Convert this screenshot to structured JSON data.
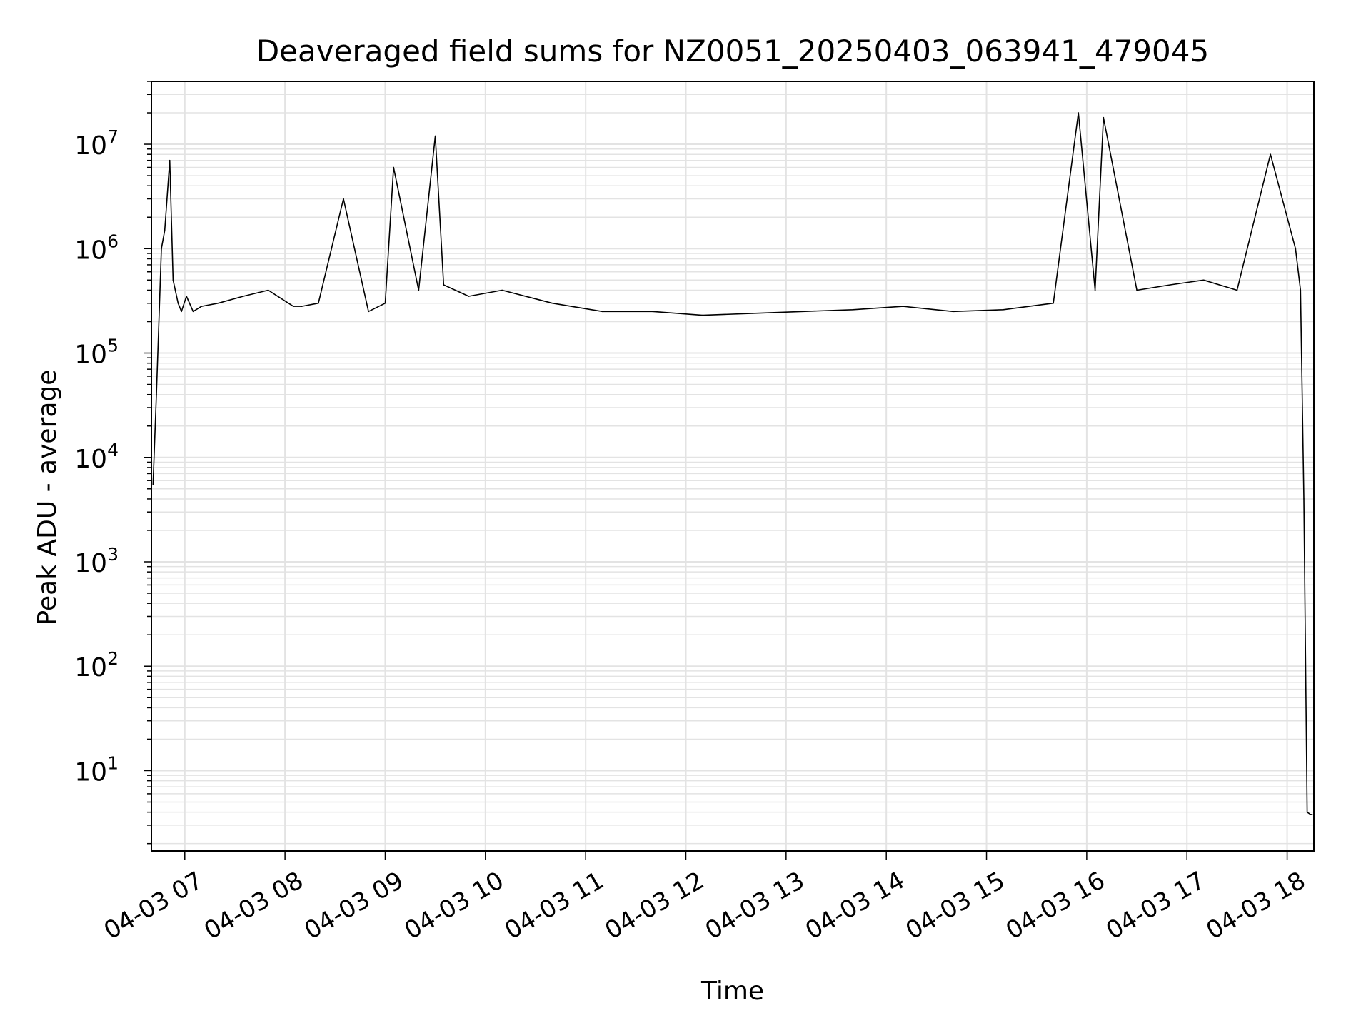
{
  "chart_data": {
    "type": "line",
    "title": "Deaveraged field sums for NZ0051_20250403_063941_479045",
    "xlabel": "Time",
    "ylabel": "Peak ADU - average",
    "yscale": "log",
    "ylim": [
      1.7,
      40000000
    ],
    "xlim": [
      "2025-04-03 06:40",
      "2025-04-03 18:16"
    ],
    "x_tick_labels": [
      "04-03 07",
      "04-03 08",
      "04-03 09",
      "04-03 10",
      "04-03 11",
      "04-03 12",
      "04-03 13",
      "04-03 14",
      "04-03 15",
      "04-03 16",
      "04-03 17",
      "04-03 18"
    ],
    "y_tick_labels": [
      {
        "base": "10",
        "exp": "1"
      },
      {
        "base": "10",
        "exp": "2"
      },
      {
        "base": "10",
        "exp": "3"
      },
      {
        "base": "10",
        "exp": "4"
      },
      {
        "base": "10",
        "exp": "5"
      },
      {
        "base": "10",
        "exp": "6"
      },
      {
        "base": "10",
        "exp": "7"
      }
    ],
    "grid": true,
    "line_color": "#000000",
    "grid_color": "#e3e3e3",
    "series": [
      {
        "x": [
          "2025-04-03 06:41",
          "2025-04-03 06:43",
          "2025-04-03 06:46",
          "2025-04-03 06:48",
          "2025-04-03 06:51",
          "2025-04-03 06:53",
          "2025-04-03 06:56",
          "2025-04-03 06:58",
          "2025-04-03 07:01",
          "2025-04-03 07:05",
          "2025-04-03 07:10",
          "2025-04-03 07:20",
          "2025-04-03 07:35",
          "2025-04-03 07:50",
          "2025-04-03 08:05",
          "2025-04-03 08:10",
          "2025-04-03 08:20",
          "2025-04-03 08:35",
          "2025-04-03 08:50",
          "2025-04-03 09:00",
          "2025-04-03 09:05",
          "2025-04-03 09:20",
          "2025-04-03 09:30",
          "2025-04-03 09:35",
          "2025-04-03 09:50",
          "2025-04-03 10:10",
          "2025-04-03 10:40",
          "2025-04-03 11:10",
          "2025-04-03 11:40",
          "2025-04-03 12:10",
          "2025-04-03 12:40",
          "2025-04-03 13:10",
          "2025-04-03 13:40",
          "2025-04-03 14:10",
          "2025-04-03 14:40",
          "2025-04-03 15:10",
          "2025-04-03 15:40",
          "2025-04-03 15:55",
          "2025-04-03 16:05",
          "2025-04-03 16:10",
          "2025-04-03 16:30",
          "2025-04-03 16:50",
          "2025-04-03 17:10",
          "2025-04-03 17:30",
          "2025-04-03 17:50",
          "2025-04-03 18:00",
          "2025-04-03 18:05",
          "2025-04-03 18:08",
          "2025-04-03 18:10",
          "2025-04-03 18:12",
          "2025-04-03 18:14",
          "2025-04-03 18:15"
        ],
        "y": [
          5500,
          40000,
          1000000,
          1500000,
          7000000,
          500000,
          300000,
          250000,
          350000,
          250000,
          280000,
          300000,
          350000,
          400000,
          280000,
          280000,
          300000,
          3000000,
          250000,
          300000,
          6000000,
          400000,
          12000000,
          450000,
          350000,
          400000,
          300000,
          250000,
          250000,
          230000,
          240000,
          250000,
          260000,
          280000,
          250000,
          260000,
          300000,
          20000000,
          400000,
          18000000,
          400000,
          450000,
          500000,
          400000,
          8000000,
          2000000,
          1000000,
          400000,
          4000,
          4,
          3.8,
          3.8
        ]
      }
    ]
  }
}
